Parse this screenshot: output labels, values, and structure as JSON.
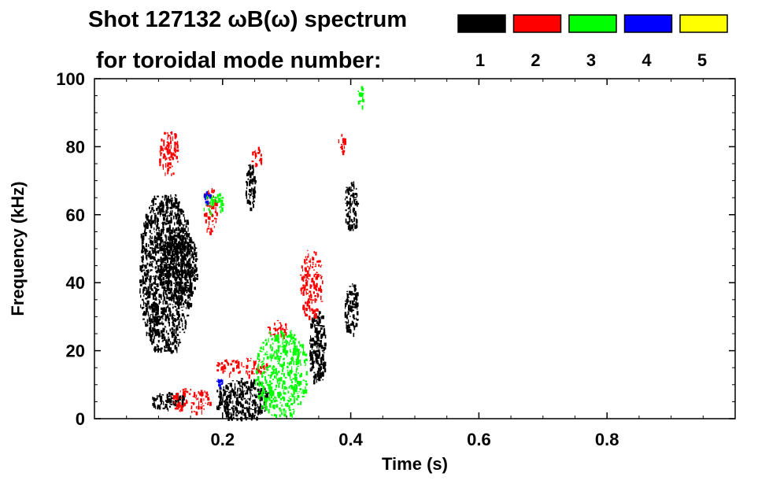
{
  "chart_data": {
    "type": "heatmap",
    "title_line1": "Shot 127132 ωB(ω) spectrum",
    "title_line2": "for toroidal mode number:",
    "xlabel": "Time (s)",
    "ylabel": "Frequency (kHz)",
    "xlim": [
      0.0,
      1.0
    ],
    "ylim": [
      0,
      100
    ],
    "x_ticks": [
      0.2,
      0.4,
      0.6,
      0.8
    ],
    "x_tick_labels": [
      "0.2",
      "0.4",
      "0.6",
      "0.8"
    ],
    "y_ticks": [
      0,
      20,
      40,
      60,
      80,
      100
    ],
    "y_tick_labels": [
      "0",
      "20",
      "40",
      "60",
      "80",
      "100"
    ],
    "legend": [
      {
        "label": "1",
        "color": "#000000"
      },
      {
        "label": "2",
        "color": "#ff0000"
      },
      {
        "label": "3",
        "color": "#00ff00"
      },
      {
        "label": "4",
        "color": "#0000ff"
      },
      {
        "label": "5",
        "color": "#ffff00"
      }
    ],
    "legend_position": "top",
    "grid": false,
    "regions": [
      {
        "mode": 1,
        "t": [
          0.07,
          0.15
        ],
        "f": [
          20,
          66
        ]
      },
      {
        "mode": 1,
        "t": [
          0.1,
          0.16
        ],
        "f": [
          35,
          55
        ]
      },
      {
        "mode": 1,
        "t": [
          0.09,
          0.14
        ],
        "f": [
          3,
          8
        ]
      },
      {
        "mode": 1,
        "t": [
          0.19,
          0.27
        ],
        "f": [
          0,
          12
        ]
      },
      {
        "mode": 1,
        "t": [
          0.235,
          0.25
        ],
        "f": [
          62,
          75
        ]
      },
      {
        "mode": 1,
        "t": [
          0.335,
          0.36
        ],
        "f": [
          10,
          32
        ]
      },
      {
        "mode": 1,
        "t": [
          0.39,
          0.41
        ],
        "f": [
          55,
          70
        ]
      },
      {
        "mode": 1,
        "t": [
          0.39,
          0.41
        ],
        "f": [
          25,
          40
        ]
      },
      {
        "mode": 2,
        "t": [
          0.1,
          0.13
        ],
        "f": [
          72,
          85
        ]
      },
      {
        "mode": 2,
        "t": [
          0.17,
          0.19
        ],
        "f": [
          55,
          68
        ]
      },
      {
        "mode": 2,
        "t": [
          0.245,
          0.26
        ],
        "f": [
          74,
          80
        ]
      },
      {
        "mode": 2,
        "t": [
          0.27,
          0.3
        ],
        "f": [
          24,
          29
        ]
      },
      {
        "mode": 2,
        "t": [
          0.32,
          0.355
        ],
        "f": [
          30,
          50
        ]
      },
      {
        "mode": 2,
        "t": [
          0.19,
          0.27
        ],
        "f": [
          13,
          18
        ]
      },
      {
        "mode": 2,
        "t": [
          0.12,
          0.18
        ],
        "f": [
          2,
          9
        ]
      },
      {
        "mode": 2,
        "t": [
          0.38,
          0.39
        ],
        "f": [
          78,
          85
        ]
      },
      {
        "mode": 3,
        "t": [
          0.17,
          0.2
        ],
        "f": [
          60,
          67
        ]
      },
      {
        "mode": 3,
        "t": [
          0.41,
          0.42
        ],
        "f": [
          92,
          98
        ]
      },
      {
        "mode": 3,
        "t": [
          0.25,
          0.33
        ],
        "f": [
          1,
          26
        ]
      },
      {
        "mode": 4,
        "t": [
          0.17,
          0.18
        ],
        "f": [
          64,
          67
        ]
      },
      {
        "mode": 4,
        "t": [
          0.19,
          0.2
        ],
        "f": [
          10,
          12
        ]
      }
    ]
  }
}
